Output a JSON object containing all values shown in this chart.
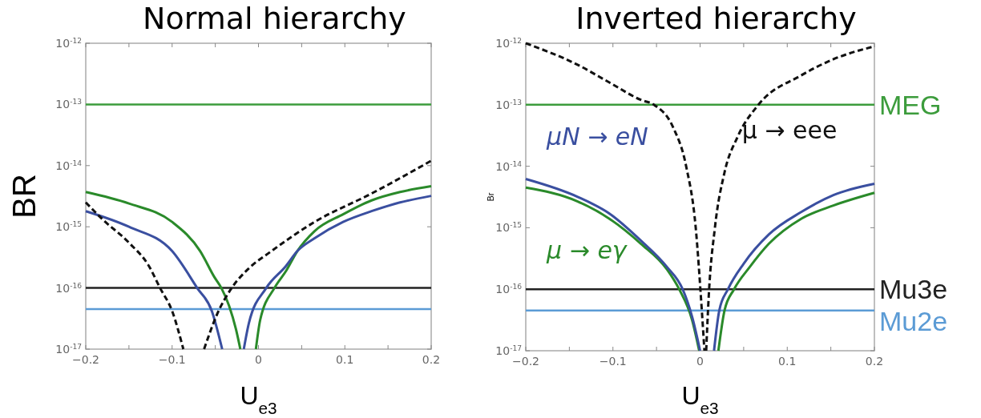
{
  "chart_data": [
    {
      "type": "line",
      "title": "Normal hierarchy",
      "xlabel": "U$_{e3}$",
      "ylabel": "BR",
      "log": "y",
      "grid": false,
      "xlim": [
        -0.2,
        0.2
      ],
      "xticks": [
        -0.2,
        {
          "value": -0.15,
          "label": null
        },
        -0.1,
        {
          "value": -0.05,
          "label": null
        },
        0,
        {
          "value": 0.05,
          "label": null
        },
        0.1,
        {
          "value": 0.15,
          "label": null
        },
        0.2
      ],
      "ylim": [
        1e-17,
        1e-12
      ],
      "yticks": [
        {
          "value": 1e-17,
          "label": "10$^{-17}$"
        },
        {
          "value": 1e-16,
          "label": "10$^{-16}$"
        },
        {
          "value": 1e-15,
          "label": "10$^{-15}$"
        },
        {
          "value": 1e-14,
          "label": "10$^{-14}$"
        },
        {
          "value": 1e-13,
          "label": "10$^{-13}$"
        },
        {
          "value": 1e-12,
          "label": "10$^{-12}$"
        }
      ],
      "ref_lines": [
        {
          "axis": "y",
          "value": 1e-13,
          "color": "#3c9c3c"
        },
        {
          "axis": "y",
          "value": 1e-16,
          "color": "#222222"
        },
        {
          "axis": "y",
          "value": 4.5e-17,
          "color": "#5b9bd5"
        }
      ],
      "series": [
        {
          "color": "#2a8a2a",
          "line_style": "solid",
          "x": [
            -0.2,
            -0.15,
            -0.1,
            -0.0675,
            -0.051,
            -0.043,
            -0.034,
            -0.026,
            -0.021,
            -0.012,
            -0.003,
            0.002,
            0.0185,
            0.032,
            0.045,
            0.065,
            0.098,
            0.131,
            0.164,
            0.2
          ],
          "values": [
            3.7e-15,
            2.4e-15,
            1.2e-15,
            4e-16,
            1.5e-16,
            1e-16,
            5.1e-17,
            2.1e-17,
            1e-17,
            null,
            1e-17,
            3e-17,
            1e-16,
            1.9e-16,
            4e-16,
            8.5e-16,
            1.6e-15,
            2.7e-15,
            3.7e-15,
            4.6e-15
          ]
        },
        {
          "color": "#3a4fa0",
          "line_style": "solid",
          "x": [
            -0.2,
            -0.15,
            -0.1,
            -0.071,
            -0.054,
            -0.042,
            -0.03,
            -0.017,
            -0.011,
            0.009,
            0.032,
            0.045,
            0.065,
            0.098,
            0.131,
            0.164,
            0.2
          ],
          "values": [
            1.8e-15,
            1e-15,
            4e-16,
            1e-16,
            4.2e-17,
            1e-17,
            null,
            1e-17,
            2.7e-17,
            1e-16,
            2.3e-16,
            4e-16,
            6.5e-16,
            1.2e-15,
            1.8e-15,
            2.5e-15,
            3.2e-15
          ]
        },
        {
          "color": "#111111",
          "line_style": "dashed",
          "x": [
            -0.2,
            -0.18,
            -0.15,
            -0.127,
            -0.114,
            -0.1,
            -0.087,
            -0.075,
            -0.063,
            -0.048,
            -0.031,
            -0.011,
            0.015,
            0.065,
            0.131,
            0.2
          ],
          "values": [
            2.5e-15,
            1.3e-15,
            5.5e-16,
            2.3e-16,
            1e-16,
            4.2e-17,
            1e-17,
            null,
            1e-17,
            3.7e-17,
            1e-16,
            2.1e-16,
            4e-16,
            1.2e-15,
            3.5e-15,
            1.2e-14
          ]
        }
      ]
    },
    {
      "type": "line",
      "title": "Inverted hierarchy",
      "xlabel": "U$_{e3}$",
      "ylabel": "Br",
      "log": "y",
      "grid": false,
      "xlim": [
        -0.2,
        0.2
      ],
      "xticks": [
        -0.2,
        {
          "value": -0.15,
          "label": null
        },
        -0.1,
        {
          "value": -0.05,
          "label": null
        },
        0,
        {
          "value": 0.05,
          "label": null
        },
        0.1,
        {
          "value": 0.15,
          "label": null
        },
        0.2
      ],
      "ylim": [
        1e-17,
        1e-12
      ],
      "yticks": [
        {
          "value": 1e-17,
          "label": "10$^{-17}$"
        },
        {
          "value": 1e-16,
          "label": "10$^{-16}$"
        },
        {
          "value": 1e-15,
          "label": "10$^{-15}$"
        },
        {
          "value": 1e-14,
          "label": "10$^{-14}$"
        },
        {
          "value": 1e-13,
          "label": "10$^{-13}$"
        },
        {
          "value": 1e-12,
          "label": "10$^{-12}$"
        }
      ],
      "ref_lines": [
        {
          "axis": "y",
          "value": 1e-13,
          "label": "MEG",
          "color": "#3c9c3c"
        },
        {
          "axis": "y",
          "value": 1e-16,
          "label": "Mu3e",
          "color": "#222222"
        },
        {
          "axis": "y",
          "value": 4.5e-17,
          "label": "Mu2e",
          "color": "#5b9bd5"
        }
      ],
      "series": [
        {
          "name": "μ → eγ",
          "color": "#2a8a2a",
          "line_style": "solid",
          "x": [
            -0.2,
            -0.141,
            -0.104,
            -0.068,
            -0.038,
            -0.024,
            -0.009,
            -0.001,
            0.01,
            0.021,
            0.028,
            0.039,
            0.057,
            0.079,
            0.116,
            0.153,
            0.2
          ],
          "values": [
            4.5e-15,
            2.7e-15,
            1.4e-15,
            5.5e-16,
            2.1e-16,
            1e-16,
            3.1e-17,
            1e-17,
            null,
            1e-17,
            4.5e-17,
            1e-16,
            2.3e-16,
            5.5e-16,
            1.4e-15,
            2.3e-15,
            3.7e-15
          ]
        },
        {
          "name": "μN → eN",
          "color": "#3a4fa0",
          "line_style": "solid",
          "x": [
            -0.2,
            -0.141,
            -0.104,
            -0.068,
            -0.038,
            -0.02,
            -0.009,
            0.0,
            0.008,
            0.016,
            0.022,
            0.032,
            0.05,
            0.079,
            0.116,
            0.153,
            0.2
          ],
          "values": [
            6.2e-15,
            3.2e-15,
            1.7e-15,
            6.2e-16,
            2.3e-16,
            1e-16,
            3.5e-17,
            1e-17,
            null,
            1e-17,
            4.5e-17,
            1e-16,
            2.6e-16,
            7.8e-16,
            1.8e-15,
            3.4e-15,
            5.2e-15
          ]
        },
        {
          "name": "μ → eee",
          "color": "#111111",
          "line_style": "dashed",
          "x": [
            -0.2,
            -0.141,
            -0.104,
            -0.068,
            -0.053,
            -0.031,
            -0.016,
            -0.005,
            0.002,
            0.005,
            0.006,
            0.007,
            0.01,
            0.017,
            0.028,
            0.043,
            0.067,
            0.116,
            0.153,
            0.2
          ],
          "values": [
            1e-12,
            4.5e-13,
            2.3e-13,
            1.2e-13,
            1e-13,
            4.3e-14,
            1e-14,
            1e-15,
            4.5e-17,
            1e-17,
            null,
            1e-17,
            8.1e-17,
            1e-15,
            7.9e-15,
            3e-14,
            1e-13,
            3e-13,
            5.5e-13,
            8.9e-13
          ]
        }
      ]
    }
  ]
}
